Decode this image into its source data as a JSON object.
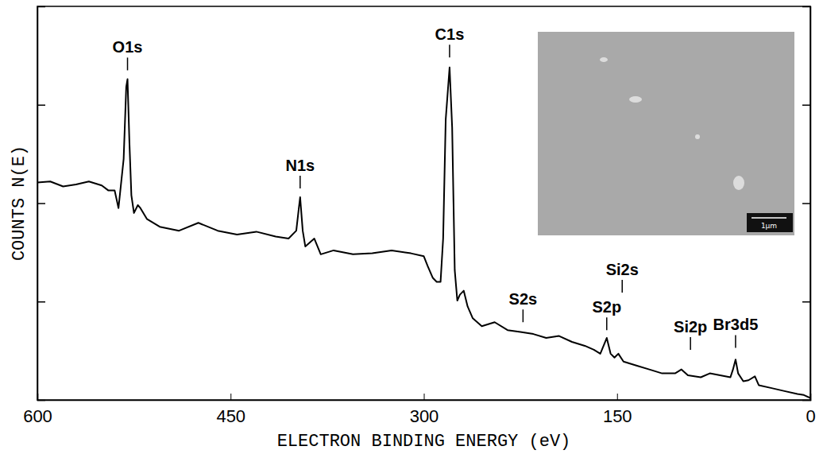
{
  "chart_data": {
    "type": "line",
    "x_label": "ELECTRON BINDING ENERGY (eV)",
    "y_label": "COUNTS N(E)",
    "color": "#000000",
    "x": [
      600,
      590,
      580,
      570,
      560,
      550,
      545,
      540,
      537,
      533,
      531,
      530,
      528.5,
      527,
      525,
      522,
      520,
      515,
      505,
      490,
      475,
      460,
      445,
      430,
      415,
      405,
      399,
      397,
      396,
      394,
      392,
      385,
      380,
      370,
      355,
      340,
      325,
      310,
      300,
      297,
      293,
      290,
      287,
      285,
      283,
      280,
      278,
      276,
      274,
      272,
      269,
      266,
      262,
      255,
      245,
      235,
      225,
      215,
      205,
      195,
      185,
      175,
      168,
      163,
      158,
      155,
      152,
      149,
      145,
      135,
      125,
      115,
      105,
      100,
      95,
      85,
      78,
      62,
      60,
      58,
      56,
      52,
      48,
      43,
      40,
      30,
      20,
      10,
      5,
      0
    ],
    "values": [
      2.21,
      2.22,
      2.17,
      2.19,
      2.22,
      2.18,
      2.13,
      2.13,
      1.95,
      2.45,
      3.18,
      3.26,
      2.61,
      2.08,
      1.9,
      1.98,
      1.95,
      1.84,
      1.76,
      1.72,
      1.8,
      1.72,
      1.68,
      1.71,
      1.66,
      1.64,
      1.72,
      1.95,
      2.06,
      1.72,
      1.56,
      1.64,
      1.48,
      1.52,
      1.48,
      1.49,
      1.52,
      1.49,
      1.46,
      1.36,
      1.24,
      1.2,
      1.2,
      1.64,
      2.85,
      3.38,
      2.77,
      1.32,
      1.01,
      1.07,
      1.11,
      0.95,
      0.83,
      0.75,
      0.79,
      0.71,
      0.69,
      0.67,
      0.63,
      0.65,
      0.59,
      0.55,
      0.51,
      0.47,
      0.63,
      0.47,
      0.43,
      0.47,
      0.39,
      0.35,
      0.31,
      0.27,
      0.27,
      0.31,
      0.25,
      0.23,
      0.27,
      0.23,
      0.31,
      0.41,
      0.27,
      0.19,
      0.2,
      0.24,
      0.15,
      0.12,
      0.09,
      0.06,
      0.05,
      0.02
    ],
    "xlim": [
      600,
      0
    ],
    "xticks": [
      600,
      450,
      300,
      150,
      0
    ],
    "ylim": [
      0,
      4
    ],
    "yticks": [
      1,
      2,
      3
    ],
    "tick_labels": "x",
    "grid": false,
    "annotations": [
      {
        "text": "O1s",
        "x": 530,
        "y": 3.35
      },
      {
        "text": "N1s",
        "x": 396,
        "y": 2.15
      },
      {
        "text": "C1s",
        "x": 280,
        "y": 3.48
      },
      {
        "text": "S2s",
        "x": 223,
        "y": 0.79
      },
      {
        "text": "Si2s",
        "x": 146,
        "y": 1.09
      },
      {
        "text": "S2p",
        "x": 158,
        "y": 0.71
      },
      {
        "text": "Si2p",
        "x": 93,
        "y": 0.51
      },
      {
        "text": "Br3d5",
        "x": 58,
        "y": 0.53
      }
    ],
    "inset": {
      "label": "1µm"
    }
  }
}
